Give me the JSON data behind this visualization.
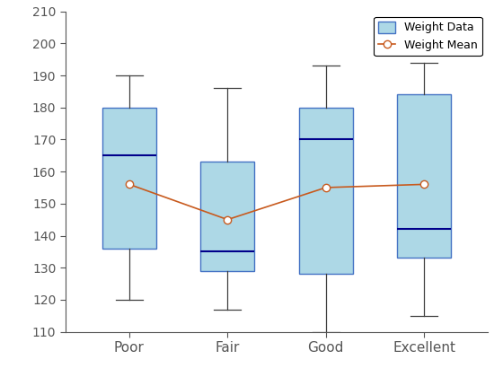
{
  "categories": [
    "Poor",
    "Fair",
    "Good",
    "Excellent"
  ],
  "boxes": [
    {
      "whislo": 120,
      "q1": 136,
      "med": 165,
      "q3": 180,
      "whishi": 190,
      "mean": 156
    },
    {
      "whislo": 117,
      "q1": 129,
      "med": 135,
      "q3": 163,
      "whishi": 186,
      "mean": 145
    },
    {
      "whislo": 110,
      "q1": 128,
      "med": 170,
      "q3": 180,
      "whishi": 193,
      "mean": 155
    },
    {
      "whislo": 115,
      "q1": 133,
      "med": 142,
      "q3": 184,
      "whishi": 194,
      "mean": 156
    }
  ],
  "ylim": [
    110,
    210
  ],
  "yticks": [
    110,
    120,
    130,
    140,
    150,
    160,
    170,
    180,
    190,
    200,
    210
  ],
  "box_facecolor": "#add8e6",
  "box_edgecolor": "#4472c4",
  "median_color": "#00008b",
  "whisker_color": "#404040",
  "cap_color": "#404040",
  "mean_line_color": "#c85a1e",
  "mean_marker": "o",
  "mean_marker_facecolor": "white",
  "mean_marker_edgecolor": "#c85a1e",
  "legend_label_box": "Weight Data",
  "legend_label_mean": "Weight Mean",
  "box_width": 0.55,
  "background_color": "white",
  "figsize": [
    5.6,
    4.2
  ],
  "dpi": 100
}
